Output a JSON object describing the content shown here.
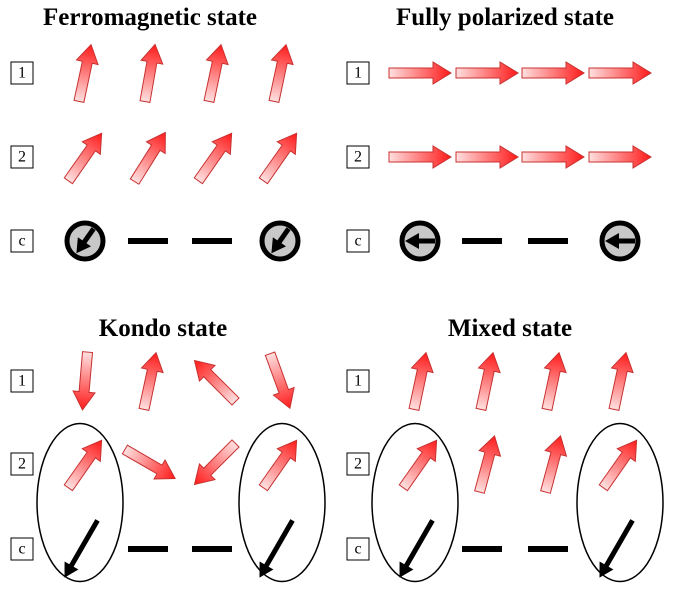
{
  "panels": [
    {
      "title": "Ferromagnetic state",
      "rows": [
        "1",
        "2",
        "c"
      ]
    },
    {
      "title": "Fully polarized state",
      "rows": [
        "1",
        "2",
        "c"
      ]
    },
    {
      "title": "Kondo state",
      "rows": [
        "1",
        "2",
        "c"
      ]
    },
    {
      "title": "Mixed state",
      "rows": [
        "1",
        "2",
        "c"
      ]
    }
  ]
}
